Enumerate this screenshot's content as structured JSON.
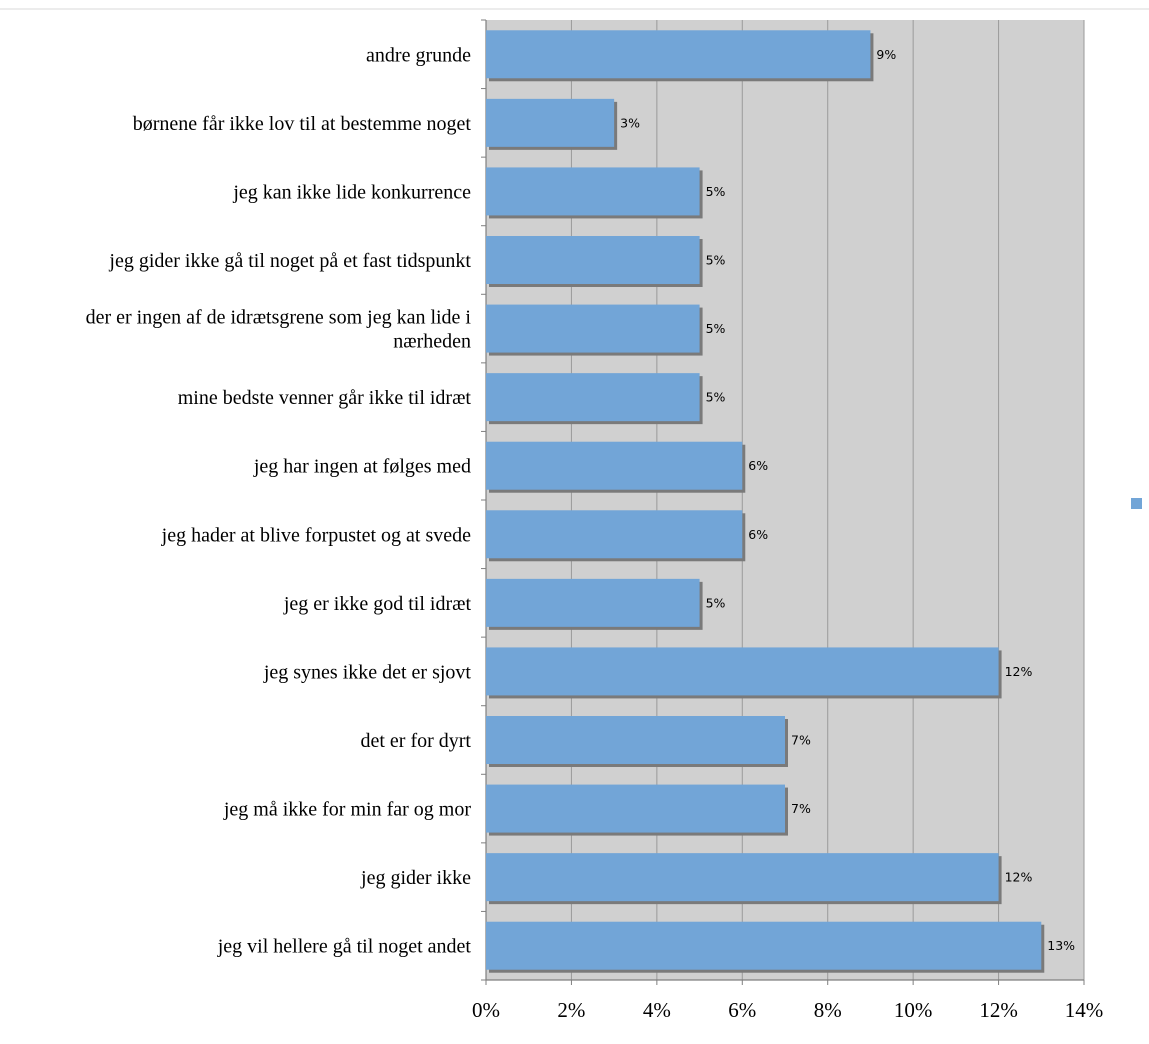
{
  "chart_data": {
    "type": "bar",
    "orientation": "horizontal",
    "categories": [
      [
        "andre grunde"
      ],
      [
        "børnene får ikke lov til at bestemme noget"
      ],
      [
        "jeg kan ikke lide konkurrence"
      ],
      [
        "jeg gider ikke gå til noget på et fast tidspunkt"
      ],
      [
        "der er ingen af de idrætsgrene som jeg kan lide i",
        "nærheden"
      ],
      [
        "mine bedste venner går ikke til idræt"
      ],
      [
        "jeg har ingen at følges med"
      ],
      [
        "jeg hader at blive forpustet og at svede"
      ],
      [
        "jeg er ikke god til idræt"
      ],
      [
        "jeg synes ikke det er sjovt"
      ],
      [
        "det er for dyrt"
      ],
      [
        "jeg må ikke for min far og mor"
      ],
      [
        "jeg gider ikke"
      ],
      [
        "jeg vil hellere gå til noget andet"
      ]
    ],
    "values": [
      9,
      3,
      5,
      5,
      5,
      5,
      6,
      6,
      5,
      12,
      7,
      7,
      12,
      13
    ],
    "data_labels": [
      "9%",
      "3%",
      "5%",
      "5%",
      "5%",
      "5%",
      "6%",
      "6%",
      "5%",
      "12%",
      "7%",
      "7%",
      "12%",
      "13%"
    ],
    "x_ticks": [
      "0%",
      "2%",
      "4%",
      "6%",
      "8%",
      "10%",
      "12%",
      "14%"
    ],
    "xlim": [
      0,
      14
    ],
    "grid": true,
    "legend": "right",
    "colors": {
      "bar": "#72a5d7",
      "bar_shadow": "#7a7a7a",
      "plot_bg": "#d0d0d0",
      "grid": "#9a9a9a",
      "axis": "#7f7f7f",
      "legend_marker": "#72a5d7",
      "top_rule": "#d9d9d9"
    }
  }
}
